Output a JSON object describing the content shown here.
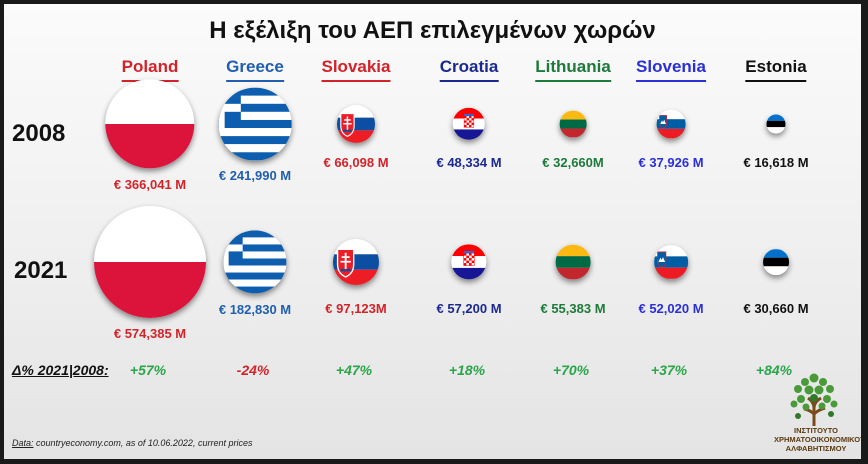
{
  "title": "Η εξέλιξη του ΑΕΠ επιλεγμένων χωρών",
  "years": [
    "2008",
    "2021"
  ],
  "delta_label": "Δ% 2021|2008:",
  "source": {
    "prefix": "Data:",
    "text": " countryeconomy.com, as of 10.06.2022, current prices"
  },
  "logo": {
    "lines": [
      "ΙΝΣΤΙΤΟΥΤΟ",
      "ΧΡΗΜΑΤΟΟΙΚΟΝΟΜΙΚΟΥ",
      "ΑΛΦΑΒΗΤΙΣΜΟΥ"
    ]
  },
  "colors": {
    "positive": "#2aa54a",
    "negative": "#d3232a"
  },
  "chart_data": {
    "type": "bubble",
    "title": "Η εξέλιξη του ΑΕΠ επιλεγμένων χωρών",
    "unit": "€ M",
    "categories": [
      "Poland",
      "Greece",
      "Slovakia",
      "Croatia",
      "Lithuania",
      "Slovenia",
      "Estonia"
    ],
    "series": [
      {
        "name": "2008",
        "values": [
          366041,
          241990,
          66098,
          48334,
          32660,
          37926,
          16618
        ]
      },
      {
        "name": "2021",
        "values": [
          574385,
          182830,
          97123,
          57200,
          55383,
          52020,
          30660
        ]
      }
    ],
    "labels_2008": [
      "€ 366,041 M",
      "€ 241,990 M",
      "€ 66,098 M",
      "€ 48,334 M",
      "€ 32,660M",
      "€ 37,926 M",
      "€ 16,618 M"
    ],
    "labels_2021": [
      "€ 574,385 M",
      "€ 182,830 M",
      "€ 97,123M",
      "€ 57,200 M",
      "€ 55,383 M",
      "€ 52,020 M",
      "€ 30,660 M"
    ],
    "delta_labels": [
      "+57%",
      "-24%",
      "+47%",
      "+18%",
      "+70%",
      "+37%",
      "+84%"
    ],
    "delta_values": [
      57,
      -24,
      47,
      18,
      70,
      37,
      84
    ],
    "country_colors": [
      "#d3232a",
      "#1f5fae",
      "#d3232a",
      "#1c2a8f",
      "#1e7a3a",
      "#2a2fd6",
      "#111111"
    ],
    "flags": [
      "poland-flag",
      "greece-flag",
      "slovakia-flag",
      "croatia-flag",
      "lithuania-flag",
      "slovenia-flag",
      "estonia-flag"
    ]
  }
}
